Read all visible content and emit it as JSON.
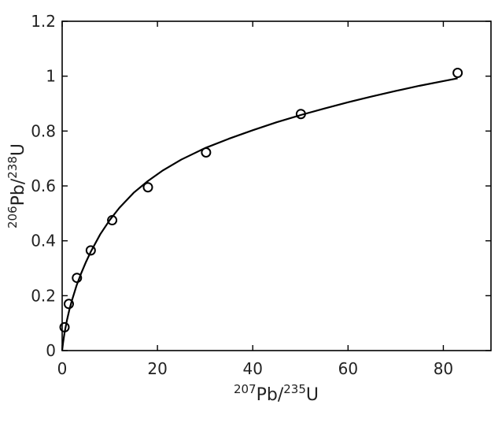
{
  "chart_data": {
    "type": "scatter",
    "title": "",
    "xlabel": {
      "mass1": "207",
      "el1": "Pb/",
      "mass2": "235",
      "el2": "U"
    },
    "ylabel": {
      "mass1": "206",
      "el1": "Pb/",
      "mass2": "238",
      "el2": "U"
    },
    "xlim": [
      0,
      90
    ],
    "ylim": [
      0,
      1.2
    ],
    "x_ticks": [
      0,
      20,
      40,
      60,
      80
    ],
    "x_tick_labels": [
      "0",
      "20",
      "40",
      "60",
      "80"
    ],
    "y_ticks": [
      0,
      0.2,
      0.4,
      0.6,
      0.8,
      1,
      1.2
    ],
    "y_tick_labels": [
      "0",
      "0.2",
      "0.4",
      "0.6",
      "0.8",
      "1",
      "1.2"
    ],
    "grid": false,
    "legend": "none",
    "series": [
      {
        "style": "curve",
        "color": "#000000",
        "x": [
          0,
          0.05,
          0.2,
          0.5,
          1,
          1.5,
          2,
          3,
          4,
          5,
          6,
          8,
          10,
          12,
          15,
          18,
          21,
          25,
          30,
          35,
          40,
          45,
          50,
          55,
          60,
          65,
          70,
          75,
          80,
          83
        ],
        "y": [
          0,
          0.008,
          0.03,
          0.065,
          0.11,
          0.148,
          0.18,
          0.236,
          0.282,
          0.323,
          0.36,
          0.424,
          0.476,
          0.52,
          0.575,
          0.618,
          0.655,
          0.696,
          0.738,
          0.772,
          0.803,
          0.832,
          0.858,
          0.882,
          0.905,
          0.926,
          0.946,
          0.965,
          0.982,
          0.992
        ]
      },
      {
        "style": "markers",
        "marker": "open-circle",
        "color": "#000000",
        "x": [
          0.5,
          1.4,
          3.1,
          6.0,
          10.5,
          18.0,
          30.2,
          50.1,
          83.0
        ],
        "y": [
          0.085,
          0.17,
          0.265,
          0.365,
          0.475,
          0.595,
          0.722,
          0.862,
          1.012
        ]
      }
    ]
  }
}
